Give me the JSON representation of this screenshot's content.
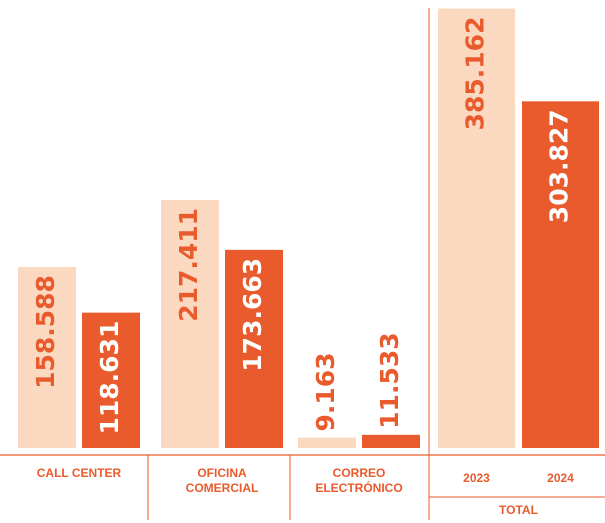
{
  "chart_data": {
    "type": "bar",
    "categories": [
      "CALL CENTER",
      "OFICINA COMERCIAL",
      "CORREO ELECTRÓNICO",
      "TOTAL"
    ],
    "series": [
      {
        "name": "2023",
        "color": "#fbd9c0",
        "values": [
          158588,
          217411,
          9163,
          385162
        ],
        "value_labels": [
          "158.588",
          "217.411",
          "9.163",
          "385.162"
        ]
      },
      {
        "name": "2024",
        "color": "#e95a2c",
        "values": [
          118631,
          173663,
          11533,
          303827
        ],
        "value_labels": [
          "118.631",
          "173.663",
          "11.533",
          "303.827"
        ]
      }
    ],
    "ylim": [
      0,
      390000
    ]
  }
}
